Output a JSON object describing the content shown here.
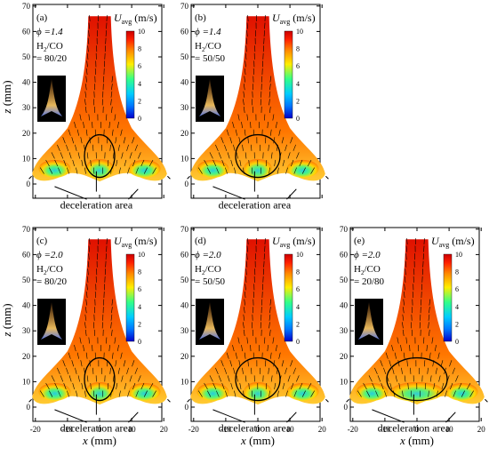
{
  "figure": {
    "velocity_symbol": "U",
    "velocity_subscript": "avg",
    "velocity_unit": " (m/s)",
    "x_axis_label": "x",
    "x_axis_unit": " (mm)",
    "z_axis_label": "z",
    "z_axis_unit": " (mm)",
    "annotation": "deceleration area",
    "colorbar_ticks": [
      "0",
      "2",
      "4",
      "6",
      "8",
      "10"
    ],
    "x_ticks": [
      "-20",
      "-10",
      "0",
      "10",
      "20"
    ],
    "z_ticks": [
      "0",
      "10",
      "20",
      "30",
      "40",
      "50",
      "60",
      "70"
    ],
    "colormap": [
      "#0000cc",
      "#0077ff",
      "#00ccff",
      "#33ff88",
      "#ffee00",
      "#ff8800",
      "#ff2200",
      "#cc0000"
    ]
  },
  "panels": [
    {
      "label": "(a)",
      "phi": "ϕ =1.4",
      "ratio_label": "H",
      "ratio_sub": "2",
      "ratio_rest": "/CO",
      "ratio_value": "= 80/20"
    },
    {
      "label": "(b)",
      "phi": "ϕ =1.4",
      "ratio_label": "H",
      "ratio_sub": "2",
      "ratio_rest": "/CO",
      "ratio_value": "= 50/50"
    },
    {
      "label": "(c)",
      "phi": "ϕ =2.0",
      "ratio_label": "H",
      "ratio_sub": "2",
      "ratio_rest": "/CO",
      "ratio_value": "= 80/20"
    },
    {
      "label": "(d)",
      "phi": "ϕ =2.0",
      "ratio_label": "H",
      "ratio_sub": "2",
      "ratio_rest": "/CO",
      "ratio_value": "= 50/50"
    },
    {
      "label": "(e)",
      "phi": "ϕ =2.0",
      "ratio_label": "H",
      "ratio_sub": "2",
      "ratio_rest": "/CO",
      "ratio_value": "= 20/80"
    }
  ],
  "chart_data": [
    {
      "type": "heatmap",
      "panel": "(a)",
      "xlim": [
        -25,
        25
      ],
      "zlim": [
        -5,
        70
      ],
      "colorbar_range": [
        0,
        10
      ]
    },
    {
      "type": "heatmap",
      "panel": "(b)",
      "xlim": [
        -25,
        25
      ],
      "zlim": [
        -5,
        70
      ],
      "colorbar_range": [
        0,
        10
      ]
    },
    {
      "type": "heatmap",
      "panel": "(c)",
      "xlim": [
        -25,
        25
      ],
      "zlim": [
        -5,
        70
      ],
      "colorbar_range": [
        0,
        10
      ]
    },
    {
      "type": "heatmap",
      "panel": "(d)",
      "xlim": [
        -25,
        25
      ],
      "zlim": [
        -5,
        70
      ],
      "colorbar_range": [
        0,
        10
      ]
    },
    {
      "type": "heatmap",
      "panel": "(e)",
      "xlim": [
        -25,
        25
      ],
      "zlim": [
        -5,
        70
      ],
      "colorbar_range": [
        0,
        10
      ]
    }
  ]
}
